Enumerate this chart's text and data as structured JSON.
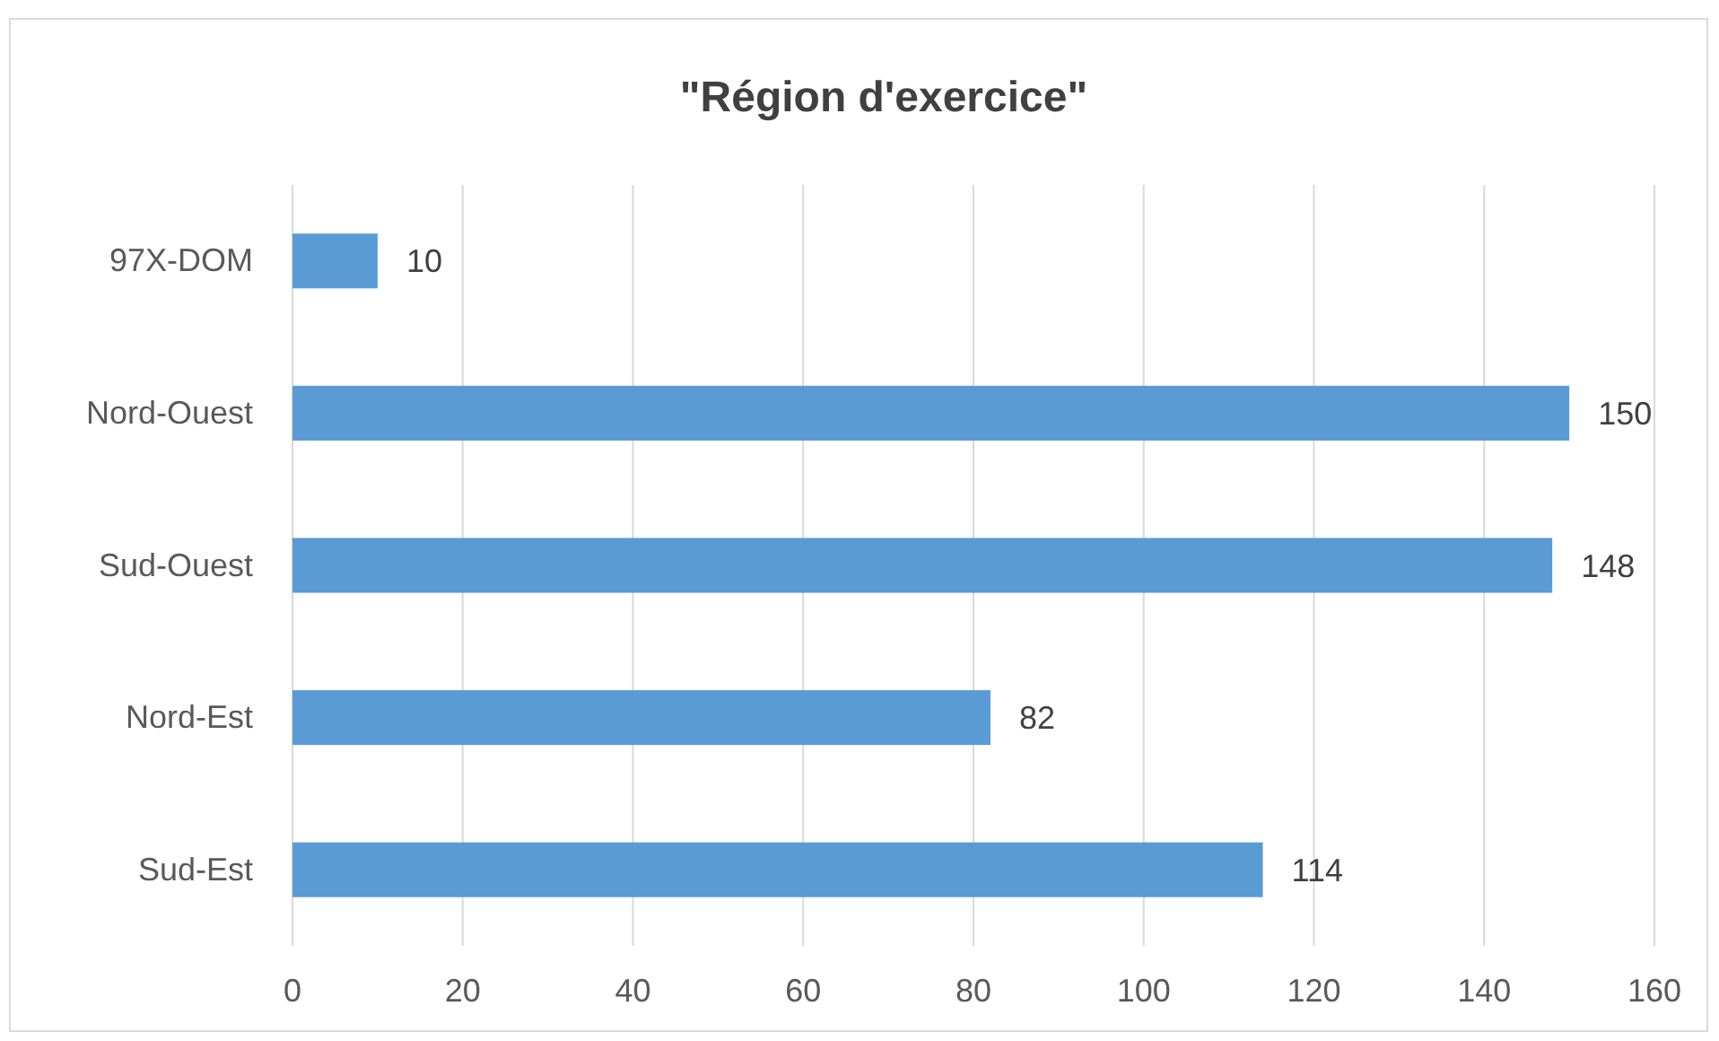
{
  "chart_data": {
    "type": "bar",
    "orientation": "horizontal",
    "title": "\"Région d'exercice\"",
    "categories": [
      "97X-DOM",
      "Nord-Ouest",
      "Sud-Ouest",
      "Nord-Est",
      "Sud-Est"
    ],
    "values": [
      10,
      150,
      148,
      82,
      114
    ],
    "color": "#5b9bd5",
    "xlim": [
      0,
      160
    ],
    "xticks": [
      0,
      20,
      40,
      60,
      80,
      100,
      120,
      140,
      160
    ],
    "grid": "x",
    "data_labels": true
  }
}
